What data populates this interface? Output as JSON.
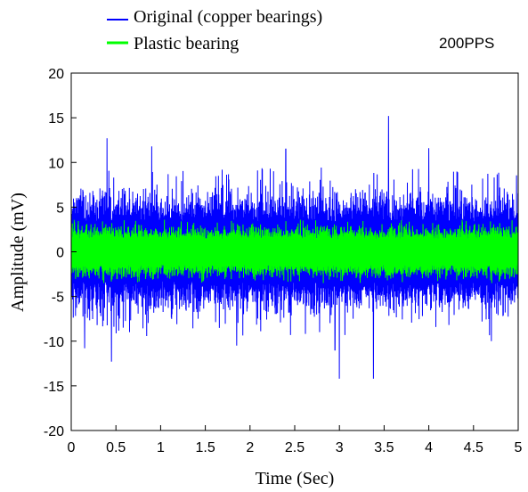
{
  "chart_data": {
    "type": "line",
    "title": "",
    "annotation": "200PPS",
    "xlabel": "Time (Sec)",
    "ylabel": "Amplitude (mV)",
    "xlim": [
      0,
      5
    ],
    "ylim": [
      -20,
      20
    ],
    "xticks": [
      "0",
      "0.5",
      "1",
      "1.5",
      "2",
      "2.5",
      "3",
      "3.5",
      "4",
      "4.5",
      "5"
    ],
    "yticks": [
      "20",
      "15",
      "10",
      "5",
      "0",
      "-5",
      "-10",
      "-15",
      "-20"
    ],
    "grid": false,
    "legend_position": "top-left, above plot",
    "series": [
      {
        "name": "Original (copper bearings)",
        "color": "#0000ff",
        "description_level": {
          "typical_peak_mV": 6,
          "max_mV": 15.2,
          "min_mV": -14.2
        },
        "peaks": [
          {
            "x": 0.4,
            "y": 12.7
          },
          {
            "x": 0.15,
            "y": -10.8
          },
          {
            "x": 0.45,
            "y": -12.3
          },
          {
            "x": 0.9,
            "y": 11.8
          },
          {
            "x": 2.4,
            "y": 11.5
          },
          {
            "x": 3.0,
            "y": -14.2
          },
          {
            "x": 3.38,
            "y": -14.2
          },
          {
            "x": 3.55,
            "y": 15.2
          },
          {
            "x": 4.0,
            "y": 11.6
          },
          {
            "x": 4.7,
            "y": -10.0
          },
          {
            "x": 2.95,
            "y": -11.0
          },
          {
            "x": 1.85,
            "y": -10.5
          }
        ]
      },
      {
        "name": "Plastic bearing",
        "color": "#00ff00",
        "description_level": {
          "typical_peak_mV": 2.6,
          "max_mV": 4.0,
          "min_mV": -3.5
        }
      }
    ]
  }
}
